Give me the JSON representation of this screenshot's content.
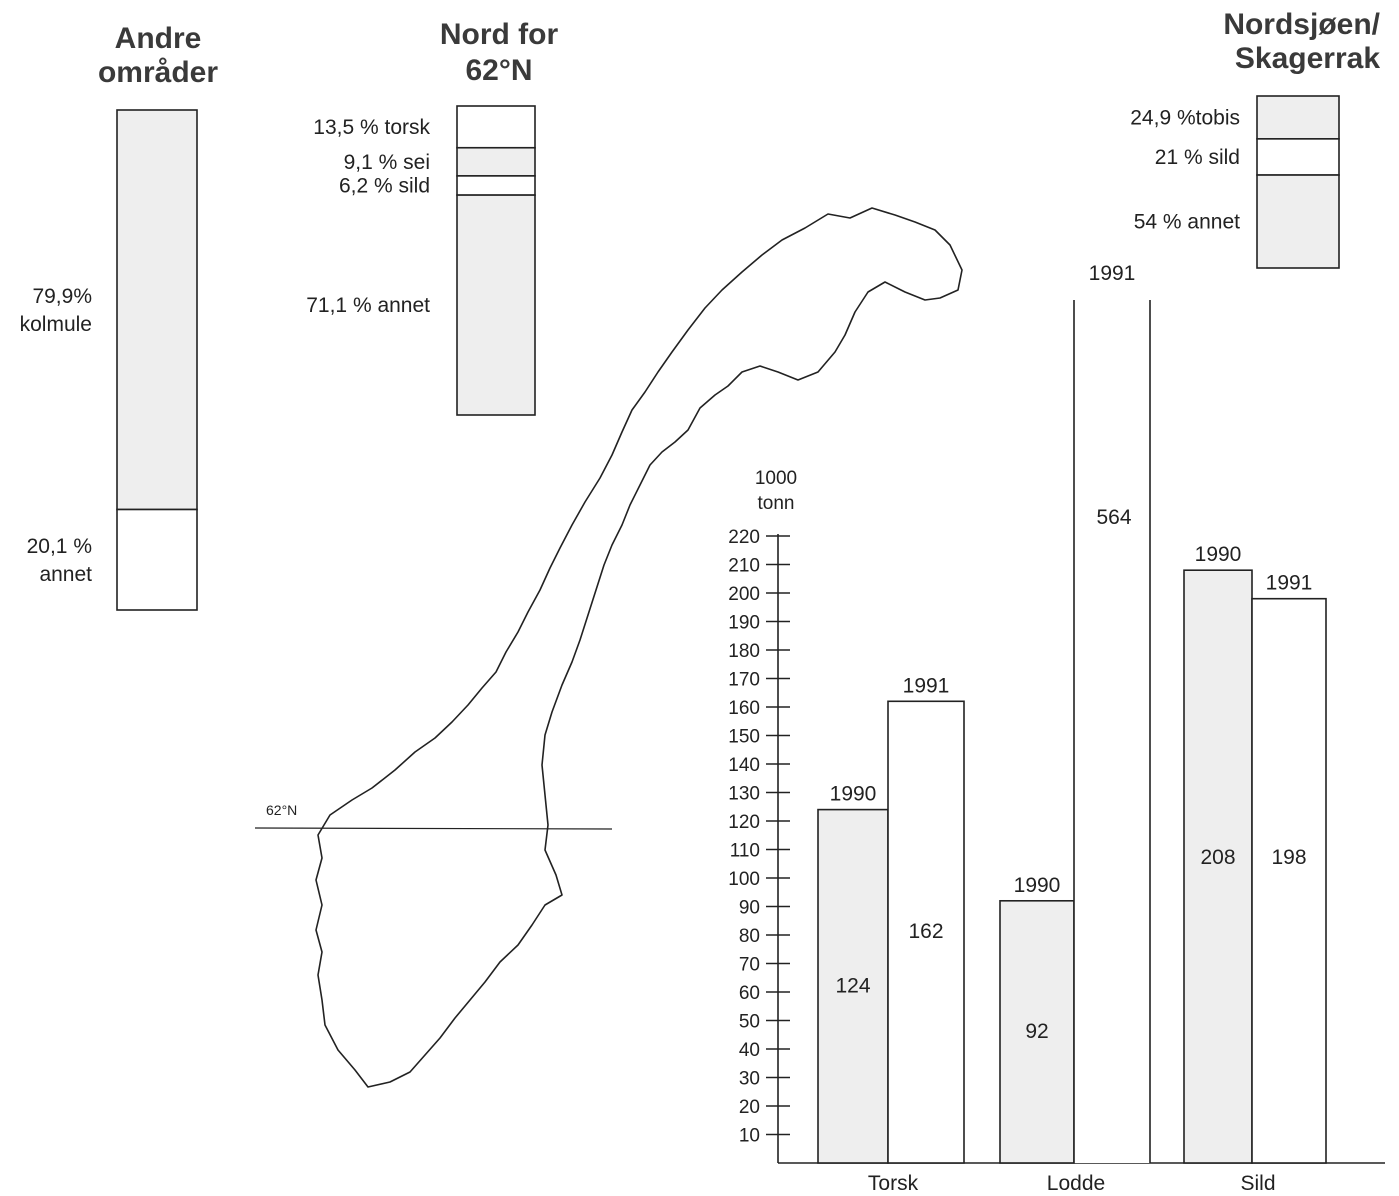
{
  "colors": {
    "shaded": "#eeeeee",
    "open": "#ffffff",
    "ink": "#222222",
    "title_ink": "#3a3a3a"
  },
  "stacks": [
    {
      "title_lines": [
        "Andre",
        "områder"
      ],
      "segments": [
        {
          "value": 79.9,
          "label_lines": [
            "79,9%",
            "kolmule"
          ],
          "fill": "#eeeeee"
        },
        {
          "value": 20.1,
          "label_lines": [
            "20,1 %",
            "annet"
          ],
          "fill": "#ffffff"
        }
      ]
    },
    {
      "title_lines": [
        "Nord for",
        "62°N"
      ],
      "segments": [
        {
          "value": 13.5,
          "label_lines": [
            "13,5 %  torsk"
          ],
          "fill": "#ffffff"
        },
        {
          "value": 9.1,
          "label_lines": [
            "9,1 %  sei"
          ],
          "fill": "#eeeeee"
        },
        {
          "value": 6.2,
          "label_lines": [
            "6,2 %  sild"
          ],
          "fill": "#ffffff"
        },
        {
          "value": 71.1,
          "label_lines": [
            "71,1 %  annet"
          ],
          "fill": "#eeeeee"
        }
      ]
    },
    {
      "title_lines": [
        "Nordsjøen/",
        "Skagerrak"
      ],
      "segments": [
        {
          "value": 24.9,
          "label_lines": [
            "24,9 %tobis"
          ],
          "fill": "#eeeeee"
        },
        {
          "value": 21,
          "label_lines": [
            "21 %  sild"
          ],
          "fill": "#ffffff"
        },
        {
          "value": 54,
          "label_lines": [
            "54 %  annet"
          ],
          "fill": "#eeeeee"
        }
      ]
    }
  ],
  "map": {
    "parallel_label": "62°N"
  },
  "chart_data": {
    "type": "bar",
    "ylabel_lines": [
      "1000",
      "tonn"
    ],
    "ylim": [
      0,
      220
    ],
    "yticks": [
      10,
      20,
      30,
      40,
      50,
      60,
      70,
      80,
      90,
      100,
      110,
      120,
      130,
      140,
      150,
      160,
      170,
      180,
      190,
      200,
      210,
      220
    ],
    "categories": [
      "Torsk",
      "Lodde",
      "Sild"
    ],
    "series": [
      {
        "name": "1990",
        "values": [
          124,
          92,
          208
        ],
        "value_labels": [
          "124",
          "92",
          "208"
        ],
        "fill": "#eeeeee"
      },
      {
        "name": "1991",
        "values": [
          162,
          564,
          198
        ],
        "value_labels": [
          "162",
          "564",
          "198"
        ],
        "fill": "#ffffff"
      }
    ],
    "legend": "none"
  }
}
